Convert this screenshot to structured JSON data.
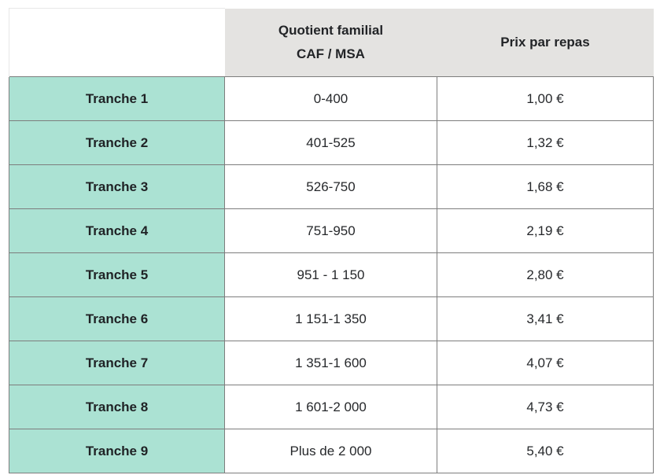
{
  "chart_data": {
    "type": "table",
    "title": "",
    "columns": [
      "",
      "Quotient familial CAF / MSA",
      "Prix par repas"
    ],
    "categories": [
      "Tranche 1",
      "Tranche 2",
      "Tranche 3",
      "Tranche 4",
      "Tranche 5",
      "Tranche 6",
      "Tranche 7",
      "Tranche 8",
      "Tranche 9"
    ],
    "quotient_ranges": [
      "0-400",
      "401-525",
      "526-750",
      "751-950",
      "951 - 1 150",
      "1 151-1 350",
      "1 351-1 600",
      "1 601-2 000",
      "Plus de 2 000"
    ],
    "prices_eur": [
      1.0,
      1.32,
      1.68,
      2.19,
      2.8,
      3.41,
      4.07,
      4.73,
      5.4
    ]
  },
  "header": {
    "empty": "",
    "quotient_line1": "Quotient familial",
    "quotient_line2": "CAF / MSA",
    "prix": "Prix par repas"
  },
  "rows": [
    {
      "label": "Tranche 1",
      "quotient": "0-400",
      "prix": "1,00 €"
    },
    {
      "label": "Tranche 2",
      "quotient": "401-525",
      "prix": "1,32 €"
    },
    {
      "label": "Tranche 3",
      "quotient": "526-750",
      "prix": "1,68 €"
    },
    {
      "label": "Tranche 4",
      "quotient": "751-950",
      "prix": "2,19 €"
    },
    {
      "label": "Tranche 5",
      "quotient": "951 - 1 150",
      "prix": "2,80 €"
    },
    {
      "label": "Tranche 6",
      "quotient": "1 151-1 350",
      "prix": "3,41 €"
    },
    {
      "label": "Tranche 7",
      "quotient": "1 351-1 600",
      "prix": "4,07 €"
    },
    {
      "label": "Tranche 8",
      "quotient": "1 601-2 000",
      "prix": "4,73 €"
    },
    {
      "label": "Tranche 9",
      "quotient": "Plus de 2 000",
      "prix": "5,40 €"
    }
  ],
  "colors": {
    "tranche_bg": "#abe2d3",
    "header_bg": "#e4e3e1",
    "body_border": "#7d7d7d",
    "corner_border": "#e7e7e7",
    "text": "#26282b"
  }
}
